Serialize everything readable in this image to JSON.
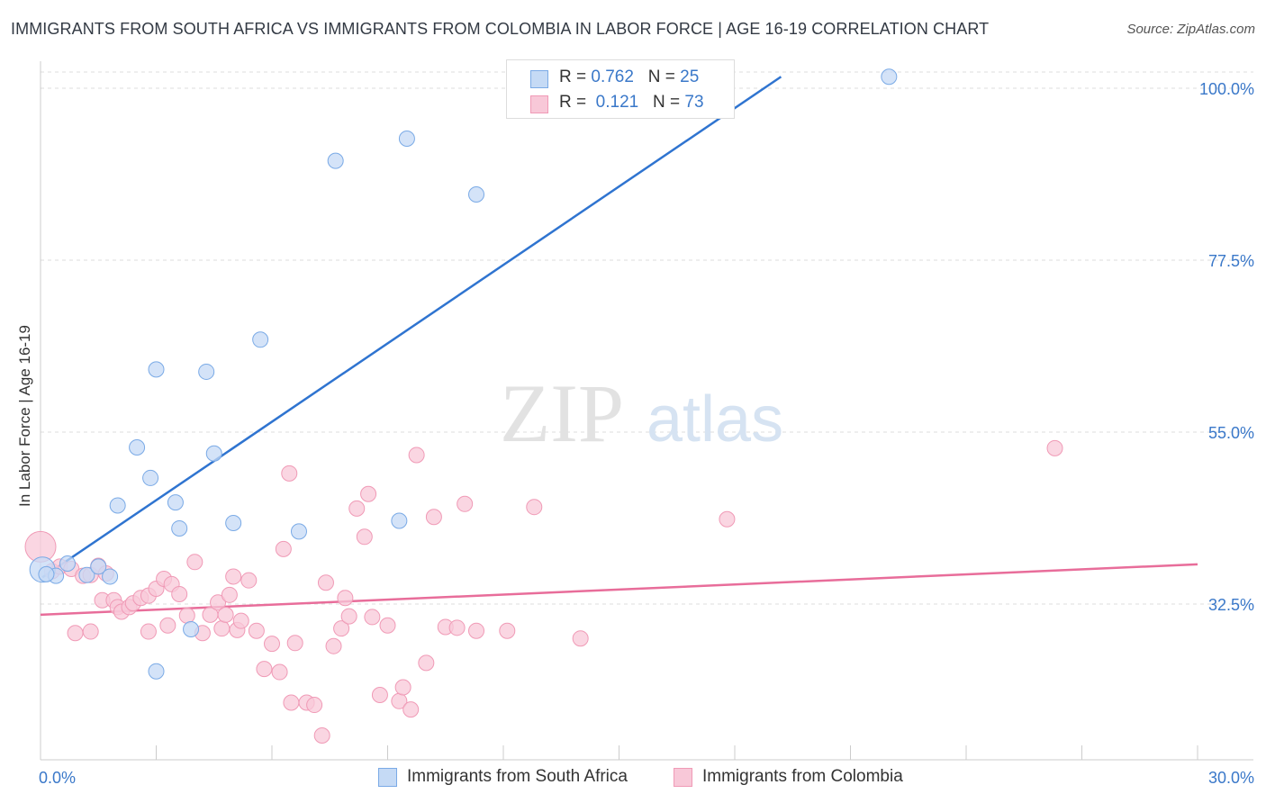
{
  "title": "IMMIGRANTS FROM SOUTH AFRICA VS IMMIGRANTS FROM COLOMBIA IN LABOR FORCE | AGE 16-19 CORRELATION CHART",
  "source": "Source: ZipAtlas.com",
  "watermark": {
    "zip": "ZIP",
    "atlas": "atlas"
  },
  "legend_top": [
    {
      "r_label": "R = ",
      "r_value": "0.762",
      "n_label": "N = ",
      "n_value": "25"
    },
    {
      "r_label": "R = ",
      "r_value": "0.121",
      "n_label": "N = ",
      "n_value": "73"
    }
  ],
  "chart_data": {
    "type": "scatter",
    "ylabel": "In Labor Force | Age 16-19",
    "xlim": [
      0,
      30
    ],
    "ylim": [
      12,
      101.5
    ],
    "x_tick_labels": [
      {
        "value": 0,
        "label": "0.0%"
      },
      {
        "value": 30,
        "label": "30.0%"
      }
    ],
    "y_tick_labels": [
      {
        "value": 32.5,
        "label": "32.5%"
      },
      {
        "value": 55.0,
        "label": "55.0%"
      },
      {
        "value": 77.5,
        "label": "77.5%"
      },
      {
        "value": 100.0,
        "label": "100.0%"
      }
    ],
    "grid": true,
    "legend_position": "bottom",
    "series": [
      {
        "name": "Immigrants from South Africa",
        "color": "#7aaae6",
        "fill": "#c5daf5",
        "line_color": "#2f74d0",
        "trend": {
          "x0": 0.05,
          "y0": 36.0,
          "x1": 19.2,
          "y1": 101.5
        },
        "points": [
          [
            0.05,
            37.0
          ],
          [
            0.4,
            36.2
          ],
          [
            0.7,
            37.8
          ],
          [
            1.2,
            36.3
          ],
          [
            1.5,
            37.4
          ],
          [
            1.8,
            36.1
          ],
          [
            2.5,
            53.0
          ],
          [
            2.85,
            49.0
          ],
          [
            2.0,
            45.4
          ],
          [
            3.0,
            63.2
          ],
          [
            3.5,
            45.8
          ],
          [
            3.6,
            42.4
          ],
          [
            4.3,
            62.9
          ],
          [
            4.5,
            52.2
          ],
          [
            5.0,
            43.1
          ],
          [
            5.7,
            67.1
          ],
          [
            3.0,
            23.7
          ],
          [
            3.9,
            29.2
          ],
          [
            6.7,
            42.0
          ],
          [
            7.65,
            90.5
          ],
          [
            9.3,
            43.4
          ],
          [
            9.5,
            93.4
          ],
          [
            11.3,
            86.1
          ],
          [
            22.0,
            101.5
          ],
          [
            0.15,
            36.4
          ]
        ]
      },
      {
        "name": "Immigrants from Colombia",
        "color": "#f09ab6",
        "fill": "#f8c8d8",
        "line_color": "#e86d9a",
        "trend": {
          "x0": 0,
          "y0": 31.1,
          "x1": 30,
          "y1": 37.7
        },
        "points": [
          [
            0.0,
            40.0
          ],
          [
            0.3,
            36.8
          ],
          [
            0.5,
            37.4
          ],
          [
            0.8,
            37.1
          ],
          [
            1.1,
            36.2
          ],
          [
            1.3,
            36.3
          ],
          [
            1.5,
            37.5
          ],
          [
            1.7,
            36.5
          ],
          [
            1.6,
            33.0
          ],
          [
            1.9,
            33.0
          ],
          [
            2.0,
            32.1
          ],
          [
            2.1,
            31.5
          ],
          [
            2.3,
            32.1
          ],
          [
            2.4,
            32.6
          ],
          [
            2.6,
            33.3
          ],
          [
            2.8,
            33.6
          ],
          [
            3.0,
            34.5
          ],
          [
            3.2,
            35.8
          ],
          [
            3.4,
            35.1
          ],
          [
            3.6,
            33.8
          ],
          [
            3.8,
            31.0
          ],
          [
            4.0,
            38.0
          ],
          [
            4.2,
            28.7
          ],
          [
            4.4,
            31.1
          ],
          [
            4.6,
            32.7
          ],
          [
            4.7,
            29.3
          ],
          [
            4.8,
            31.1
          ],
          [
            5.0,
            36.1
          ],
          [
            5.1,
            29.1
          ],
          [
            5.2,
            30.3
          ],
          [
            5.4,
            35.6
          ],
          [
            5.6,
            29.0
          ],
          [
            5.8,
            24.0
          ],
          [
            6.0,
            27.3
          ],
          [
            6.2,
            23.6
          ],
          [
            6.3,
            39.7
          ],
          [
            6.45,
            49.6
          ],
          [
            6.6,
            27.4
          ],
          [
            6.5,
            19.6
          ],
          [
            6.9,
            19.6
          ],
          [
            7.1,
            19.3
          ],
          [
            7.3,
            15.3
          ],
          [
            7.4,
            35.3
          ],
          [
            7.6,
            27.0
          ],
          [
            7.8,
            29.3
          ],
          [
            8.0,
            30.9
          ],
          [
            8.2,
            45.0
          ],
          [
            8.4,
            41.3
          ],
          [
            8.5,
            46.9
          ],
          [
            8.6,
            30.8
          ],
          [
            8.8,
            20.6
          ],
          [
            9.0,
            29.7
          ],
          [
            9.3,
            19.8
          ],
          [
            9.4,
            21.6
          ],
          [
            9.6,
            18.7
          ],
          [
            9.75,
            52.0
          ],
          [
            10.0,
            24.8
          ],
          [
            10.2,
            43.9
          ],
          [
            10.5,
            29.5
          ],
          [
            10.8,
            29.4
          ],
          [
            11.0,
            45.6
          ],
          [
            11.3,
            29.0
          ],
          [
            12.1,
            29.0
          ],
          [
            12.8,
            45.2
          ],
          [
            14.0,
            28.0
          ],
          [
            17.8,
            43.6
          ],
          [
            26.3,
            52.9
          ],
          [
            1.3,
            28.9
          ],
          [
            0.9,
            28.7
          ],
          [
            2.8,
            28.9
          ],
          [
            3.3,
            29.7
          ],
          [
            4.9,
            33.7
          ],
          [
            7.9,
            33.3
          ]
        ]
      }
    ]
  },
  "y_axis_title": "In Labor Force | Age 16-19",
  "bottom_legend": [
    {
      "label": "Immigrants from South Africa"
    },
    {
      "label": "Immigrants from Colombia"
    }
  ]
}
